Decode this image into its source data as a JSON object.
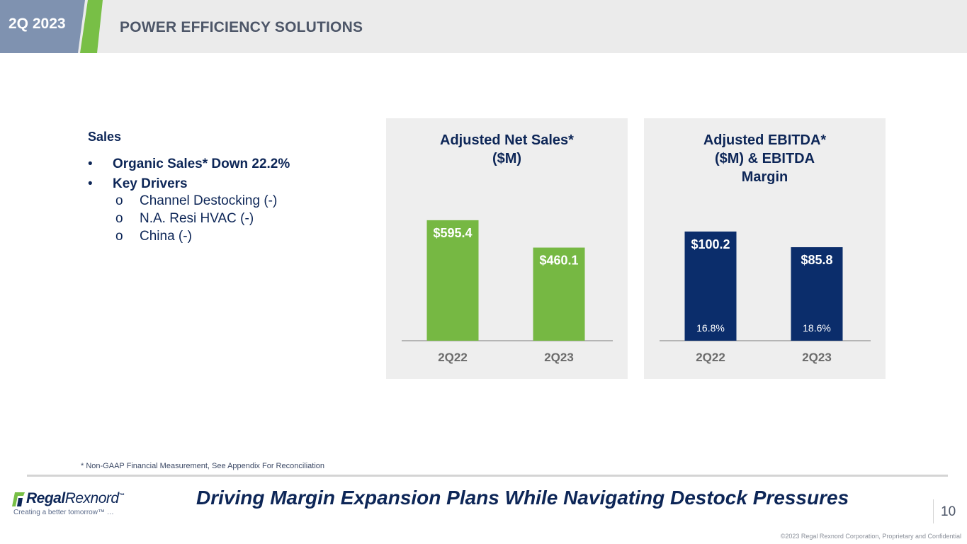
{
  "header": {
    "badge": "2Q 2023",
    "title": "POWER EFFICIENCY SOLUTIONS",
    "colors": {
      "badge_blue": "#7f92b0",
      "badge_green": "#78bf46",
      "bar": "#ebebeb"
    }
  },
  "sales": {
    "heading": "Sales",
    "bullets": [
      {
        "mark": "•",
        "text": "Organic Sales* Down 22.2%"
      },
      {
        "mark": "•",
        "text": "Key Drivers"
      }
    ],
    "drivers": [
      {
        "mark": "o",
        "text": "Channel Destocking (-)"
      },
      {
        "mark": "o",
        "text": "N.A. Resi HVAC (-)"
      },
      {
        "mark": "o",
        "text": "China (-)"
      }
    ]
  },
  "chart_data": [
    {
      "type": "bar",
      "title_lines": [
        "Adjusted Net Sales*",
        "($M)"
      ],
      "categories": [
        "2Q22",
        "2Q23"
      ],
      "values": [
        595.4,
        460.1
      ],
      "value_labels": [
        "$595.4",
        "$460.1"
      ],
      "ylim": [
        0,
        700
      ],
      "color": "#76b843"
    },
    {
      "type": "bar",
      "title_lines": [
        "Adjusted EBITDA*",
        "($M) & EBITDA",
        "Margin"
      ],
      "categories": [
        "2Q22",
        "2Q23"
      ],
      "values": [
        100.2,
        85.8
      ],
      "value_labels": [
        "$100.2",
        "$85.8"
      ],
      "margins": [
        "16.8%",
        "18.6%"
      ],
      "ylim": [
        0,
        130
      ],
      "color": "#0b2d6b"
    }
  ],
  "footer": {
    "footnote": "* Non-GAAP Financial Measurement, See Appendix For Reconciliation",
    "logo_bold": "Regal",
    "logo_thin": "Rexnord",
    "logo_mark": "™",
    "logo_tagline": "Creating a better tomorrow™ …",
    "tagline": "Driving Margin Expansion Plans While Navigating Destock Pressures",
    "page_number": "10",
    "copyright": "©2023 Regal Rexnord Corporation, Proprietary and Confidential"
  }
}
